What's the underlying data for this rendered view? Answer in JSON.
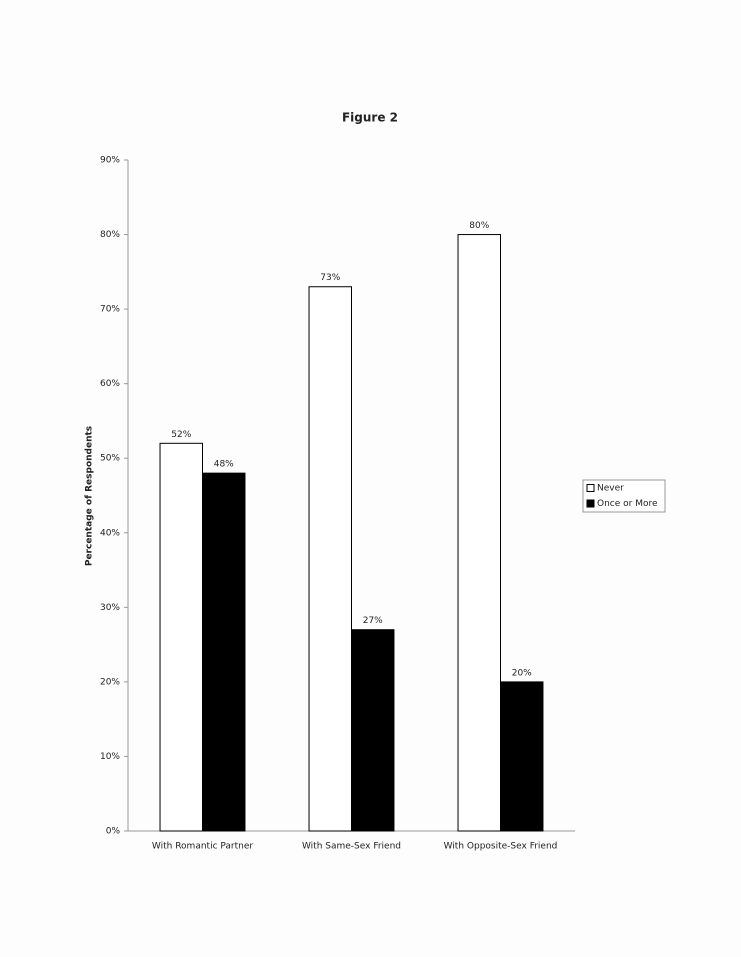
{
  "chart_data": {
    "type": "bar",
    "title": "Figure 2",
    "y_label": "Percentage of Respondents",
    "categories": [
      "With Romantic Partner",
      "With Same-Sex Friend",
      "With Opposite-Sex Friend"
    ],
    "series": [
      {
        "name": "Never",
        "color": "#ffffff",
        "values": [
          52,
          73,
          80
        ],
        "value_labels": [
          "52%",
          "73%",
          "80%"
        ]
      },
      {
        "name": "Once or More",
        "color": "#000000",
        "values": [
          48,
          27,
          20
        ],
        "value_labels": [
          "48%",
          "27%",
          "20%"
        ]
      }
    ],
    "ylim": [
      0,
      90
    ],
    "yticks": [
      {
        "value": 0,
        "label": "0%"
      },
      {
        "value": 10,
        "label": "10%"
      },
      {
        "value": 20,
        "label": "20%"
      },
      {
        "value": 30,
        "label": "30%"
      },
      {
        "value": 40,
        "label": "40%"
      },
      {
        "value": 50,
        "label": "50%"
      },
      {
        "value": 60,
        "label": "60%"
      },
      {
        "value": 70,
        "label": "70%"
      },
      {
        "value": 80,
        "label": "80%"
      },
      {
        "value": 90,
        "label": "90%"
      }
    ],
    "grid": false,
    "legend": "right"
  }
}
